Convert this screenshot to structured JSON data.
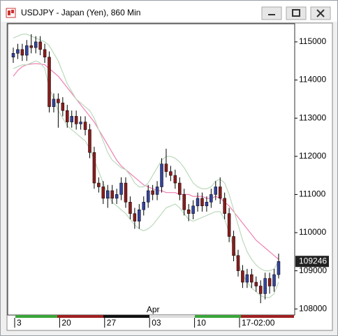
{
  "window": {
    "title": "USDJPY - Japan (Yen), 860 Min"
  },
  "chart_data": {
    "type": "candlestick",
    "categories": [
      "3",
      null,
      null,
      null,
      null,
      null,
      null,
      null,
      null,
      null,
      "20",
      null,
      null,
      null,
      null,
      null,
      null,
      null,
      null,
      null,
      "27",
      null,
      null,
      null,
      null,
      null,
      null,
      null,
      null,
      null,
      "03",
      null,
      null,
      null,
      null,
      null,
      null,
      null,
      null,
      null,
      "10",
      null,
      null,
      null,
      null,
      null,
      null,
      null,
      null,
      null,
      "17-02:00",
      null,
      null,
      null,
      null,
      null,
      null,
      null,
      null,
      null
    ],
    "month_categories": [
      null,
      null,
      null,
      null,
      null,
      null,
      null,
      null,
      null,
      null,
      null,
      null,
      null,
      null,
      null,
      null,
      null,
      null,
      null,
      null,
      null,
      null,
      null,
      null,
      null,
      null,
      null,
      null,
      null,
      null,
      "Apr",
      null,
      null,
      null,
      null,
      null,
      null,
      null,
      null,
      null,
      null,
      null,
      null,
      null,
      null,
      null,
      null,
      null,
      null,
      null,
      null,
      null,
      null,
      null,
      null,
      null,
      null,
      null,
      null,
      null
    ],
    "open": [
      114600,
      114700,
      114800,
      114650,
      114900,
      114850,
      115000,
      114800,
      114600,
      113300,
      113500,
      113400,
      113200,
      112900,
      113050,
      112850,
      112900,
      112700,
      112100,
      111300,
      111200,
      110900,
      111100,
      110900,
      111000,
      111300,
      110800,
      110500,
      110300,
      110600,
      110800,
      111100,
      111000,
      111200,
      111800,
      111600,
      111500,
      111300,
      111000,
      110600,
      110500,
      110700,
      110900,
      110700,
      110800,
      111000,
      111200,
      110900,
      110500,
      109900,
      109400,
      109000,
      108700,
      108900,
      108700,
      108600,
      108400,
      108800,
      108600,
      108900
    ],
    "high": [
      114850,
      114950,
      114950,
      115050,
      115200,
      115150,
      115150,
      114950,
      114750,
      113650,
      113650,
      113550,
      113350,
      113200,
      113200,
      113050,
      113050,
      112850,
      112250,
      111450,
      111350,
      111250,
      111250,
      111150,
      111450,
      111450,
      110950,
      110650,
      110750,
      110950,
      111250,
      111250,
      111350,
      111950,
      112200,
      111750,
      111650,
      111450,
      111150,
      110750,
      110850,
      111050,
      111050,
      110950,
      111150,
      111350,
      111450,
      111050,
      110650,
      110050,
      109550,
      109150,
      109050,
      109050,
      108850,
      108750,
      108950,
      108950,
      109050,
      109450
    ],
    "low": [
      114450,
      114550,
      114500,
      114500,
      114700,
      114700,
      114650,
      114450,
      113150,
      113150,
      112750,
      113050,
      112750,
      112750,
      112700,
      112700,
      112550,
      111950,
      111150,
      111050,
      110750,
      110650,
      110750,
      110750,
      110850,
      110650,
      110350,
      110100,
      110100,
      110450,
      110650,
      110850,
      110850,
      111050,
      111450,
      111350,
      111150,
      110850,
      110450,
      110300,
      110350,
      110550,
      110550,
      110550,
      110650,
      110850,
      110750,
      110350,
      109750,
      109250,
      108850,
      108550,
      108550,
      108550,
      108450,
      108150,
      108250,
      108400,
      108450,
      108800
    ],
    "close": [
      114700,
      114800,
      114650,
      114900,
      114850,
      115000,
      114800,
      114600,
      113300,
      113500,
      113400,
      113200,
      112900,
      113050,
      112850,
      112900,
      112700,
      112100,
      111300,
      111200,
      110900,
      111100,
      110900,
      111000,
      111300,
      110800,
      110500,
      110300,
      110600,
      110800,
      111100,
      111000,
      111200,
      111800,
      111600,
      111500,
      111300,
      111000,
      110600,
      110500,
      110700,
      110900,
      110700,
      110800,
      111000,
      111200,
      110900,
      110500,
      109900,
      109400,
      109000,
      108700,
      108900,
      108700,
      108600,
      108400,
      108800,
      108600,
      108900,
      109246
    ],
    "up_color": "#33449c",
    "down_color": "#8a1c1c",
    "lines": [
      {
        "color": "#f07fb0",
        "values": [
          114100,
          114250,
          114350,
          114400,
          114420,
          114430,
          114420,
          114400,
          114300,
          114200,
          114100,
          113950,
          113800,
          113650,
          113500,
          113350,
          113200,
          113050,
          112900,
          112700,
          112500,
          112300,
          112100,
          111900,
          111750,
          111650,
          111550,
          111450,
          111350,
          111250,
          111200,
          111150,
          111100,
          111100,
          111050,
          111050,
          111050,
          111000,
          111000,
          111000,
          110950,
          110950,
          110950,
          110900,
          110900,
          110950,
          110900,
          110800,
          110700,
          110550,
          110400,
          110250,
          110100,
          109950,
          109800,
          109700,
          109600,
          109500,
          109400,
          109300
        ]
      },
      {
        "color": "#bcd9bc",
        "values": [
          115100,
          115150,
          115200,
          115200,
          115150,
          115100,
          115050,
          115000,
          114900,
          114700,
          114500,
          114200,
          113900,
          113700,
          113500,
          113400,
          113300,
          113200,
          113000,
          112700,
          112400,
          112100,
          111900,
          111800,
          111700,
          111650,
          111500,
          111300,
          111200,
          111200,
          111300,
          111500,
          111700,
          111900,
          112000,
          112000,
          111950,
          111850,
          111700,
          111500,
          111300,
          111200,
          111150,
          111150,
          111200,
          111350,
          111400,
          111300,
          111000,
          110600,
          110200,
          109800,
          109500,
          109300,
          109150,
          109050,
          109000,
          109000,
          109050,
          109250
        ]
      },
      {
        "color": "#bcd9bc",
        "values": [
          114300,
          114350,
          114400,
          114400,
          114450,
          114500,
          114450,
          114300,
          113800,
          113500,
          113200,
          113000,
          112800,
          112700,
          112600,
          112500,
          112400,
          112200,
          111900,
          111600,
          111300,
          111000,
          110800,
          110700,
          110600,
          110500,
          110350,
          110200,
          110100,
          110050,
          110100,
          110200,
          110350,
          110500,
          110650,
          110700,
          110750,
          110650,
          110500,
          110350,
          110300,
          110350,
          110400,
          110450,
          110500,
          110550,
          110550,
          110350,
          110000,
          109600,
          109200,
          108900,
          108700,
          108550,
          108450,
          108350,
          108300,
          108300,
          108400,
          108700
        ]
      }
    ],
    "ylim": [
      107840,
      115475
    ],
    "yticks": [
      108000,
      109000,
      110000,
      111000,
      112000,
      113000,
      114000,
      115000
    ]
  }
}
